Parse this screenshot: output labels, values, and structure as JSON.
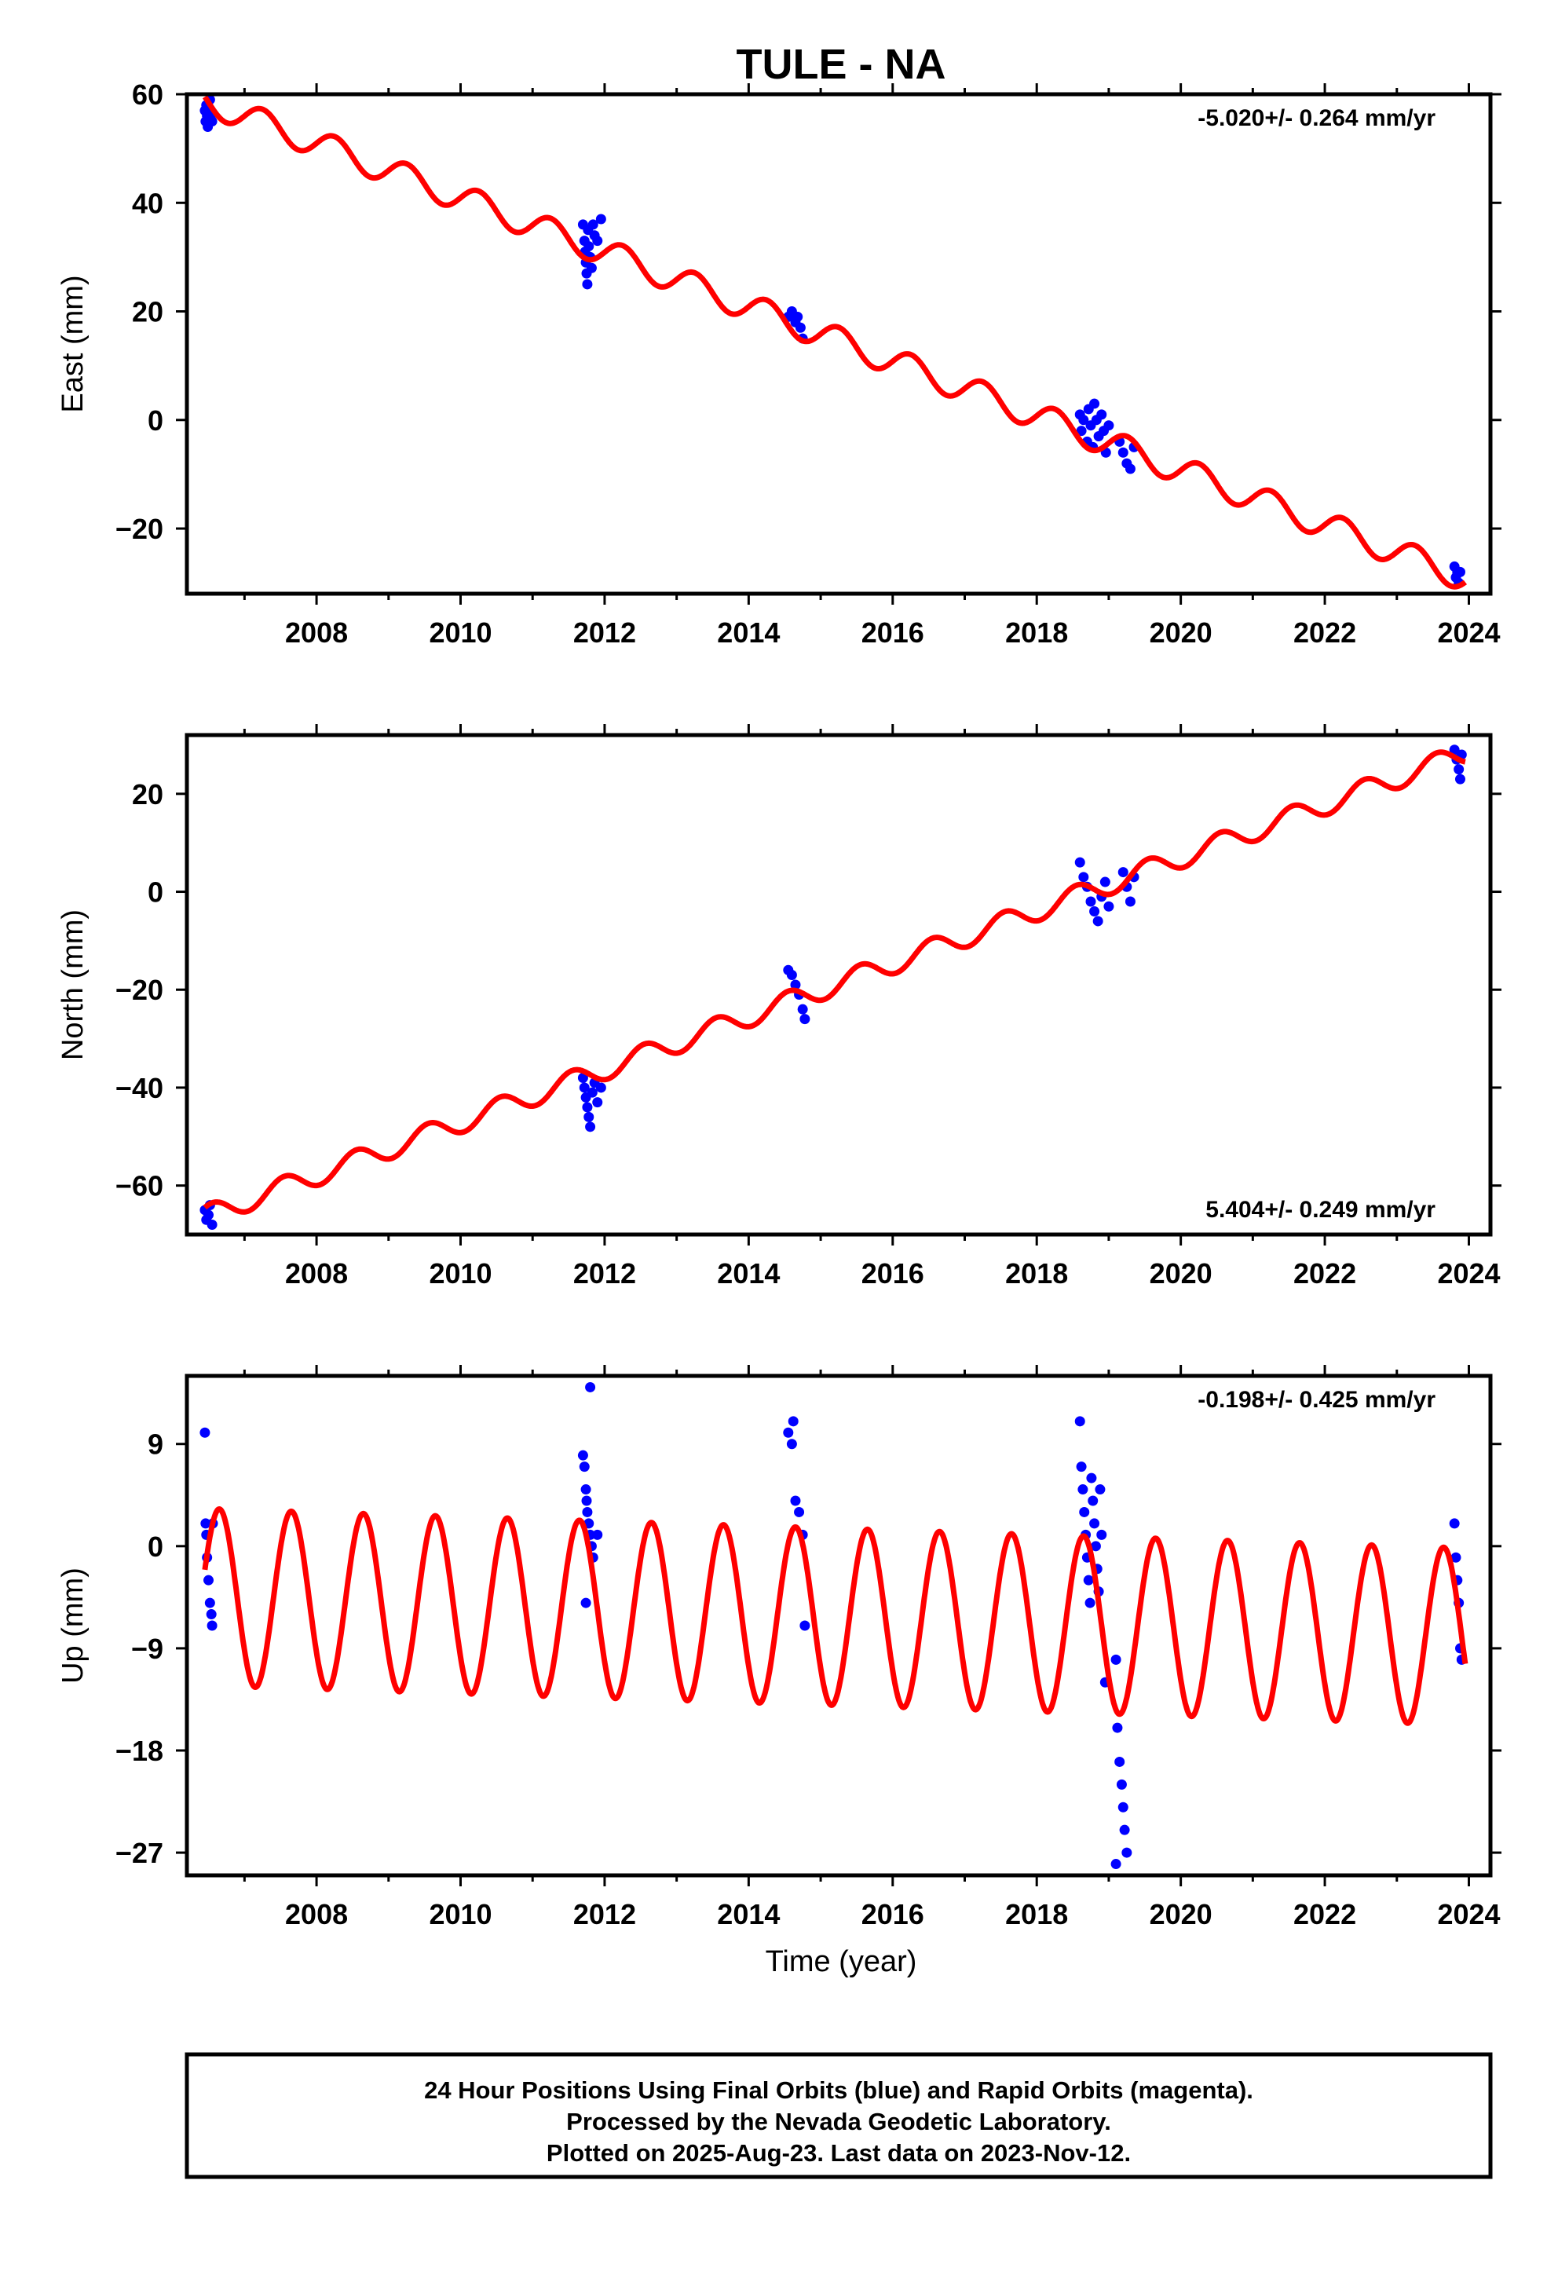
{
  "chart_data": {
    "title": "TULE - NA",
    "xlabel": "Time (year)",
    "xlim": [
      2006.2,
      2024.3
    ],
    "x_ticks": [
      2008,
      2010,
      2012,
      2014,
      2016,
      2018,
      2020,
      2022,
      2024
    ],
    "panels": [
      {
        "type": "scatter",
        "ylabel": "East (mm)",
        "ylim": [
          -32,
          60
        ],
        "y_ticks": [
          60,
          40,
          20,
          0,
          -20
        ],
        "rate_label": "-5.020+/- 0.264 mm/yr",
        "rate_position": "top-right",
        "model": {
          "color": "#ff0000",
          "slope": -5.02,
          "intercept": 58.5,
          "t0": 2006.5,
          "annual_amplitude": 2.5,
          "annual_phase": 0.5
        },
        "series": [
          {
            "color": "#0000ff",
            "points": [
              [
                2006.45,
                57
              ],
              [
                2006.46,
                55
              ],
              [
                2006.47,
                58
              ],
              [
                2006.48,
                56
              ],
              [
                2006.49,
                54
              ],
              [
                2006.5,
                57
              ],
              [
                2006.52,
                59
              ],
              [
                2006.53,
                56
              ],
              [
                2006.55,
                55
              ],
              [
                2011.7,
                36
              ],
              [
                2011.72,
                33
              ],
              [
                2011.73,
                31
              ],
              [
                2011.74,
                29
              ],
              [
                2011.75,
                27
              ],
              [
                2011.76,
                25
              ],
              [
                2011.77,
                35
              ],
              [
                2011.78,
                32
              ],
              [
                2011.8,
                30
              ],
              [
                2011.82,
                28
              ],
              [
                2011.84,
                36
              ],
              [
                2011.86,
                34
              ],
              [
                2011.9,
                33
              ],
              [
                2011.95,
                37
              ],
              [
                2014.55,
                19
              ],
              [
                2014.6,
                20
              ],
              [
                2014.65,
                18
              ],
              [
                2014.68,
                19
              ],
              [
                2014.72,
                17
              ],
              [
                2014.75,
                15
              ],
              [
                2018.6,
                1
              ],
              [
                2018.62,
                -2
              ],
              [
                2018.65,
                0
              ],
              [
                2018.7,
                -4
              ],
              [
                2018.72,
                2
              ],
              [
                2018.75,
                -1
              ],
              [
                2018.78,
                -5
              ],
              [
                2018.8,
                3
              ],
              [
                2018.83,
                0
              ],
              [
                2018.86,
                -3
              ],
              [
                2018.9,
                1
              ],
              [
                2018.93,
                -2
              ],
              [
                2018.96,
                -6
              ],
              [
                2019.0,
                -1
              ],
              [
                2019.15,
                -4
              ],
              [
                2019.2,
                -6
              ],
              [
                2019.25,
                -8
              ],
              [
                2019.3,
                -9
              ],
              [
                2019.35,
                -5
              ],
              [
                2023.8,
                -27
              ],
              [
                2023.82,
                -29
              ],
              [
                2023.84,
                -28
              ],
              [
                2023.86,
                -30
              ],
              [
                2023.88,
                -28
              ]
            ]
          }
        ]
      },
      {
        "type": "scatter",
        "ylabel": "North (mm)",
        "ylim": [
          -70,
          32
        ],
        "y_ticks": [
          20,
          0,
          -20,
          -40,
          -60
        ],
        "rate_label": "5.404+/- 0.249 mm/yr",
        "rate_position": "bottom-right",
        "model": {
          "color": "#ff0000",
          "slope": 5.404,
          "intercept": -66,
          "t0": 2006.5,
          "annual_amplitude": 2.2,
          "annual_phase": 0.2
        },
        "series": [
          {
            "color": "#0000ff",
            "points": [
              [
                2006.45,
                -65
              ],
              [
                2006.47,
                -67
              ],
              [
                2006.5,
                -66
              ],
              [
                2006.52,
                -64
              ],
              [
                2006.55,
                -68
              ],
              [
                2011.7,
                -38
              ],
              [
                2011.72,
                -40
              ],
              [
                2011.74,
                -42
              ],
              [
                2011.76,
                -44
              ],
              [
                2011.78,
                -46
              ],
              [
                2011.8,
                -48
              ],
              [
                2011.83,
                -41
              ],
              [
                2011.86,
                -39
              ],
              [
                2011.9,
                -43
              ],
              [
                2011.95,
                -40
              ],
              [
                2014.55,
                -16
              ],
              [
                2014.6,
                -17
              ],
              [
                2014.65,
                -19
              ],
              [
                2014.7,
                -21
              ],
              [
                2014.75,
                -24
              ],
              [
                2014.78,
                -26
              ],
              [
                2018.6,
                6
              ],
              [
                2018.65,
                3
              ],
              [
                2018.7,
                1
              ],
              [
                2018.75,
                -2
              ],
              [
                2018.8,
                -4
              ],
              [
                2018.85,
                -6
              ],
              [
                2018.9,
                -1
              ],
              [
                2018.95,
                2
              ],
              [
                2019.0,
                -3
              ],
              [
                2019.2,
                4
              ],
              [
                2019.25,
                1
              ],
              [
                2019.3,
                -2
              ],
              [
                2019.35,
                3
              ],
              [
                2023.8,
                29
              ],
              [
                2023.83,
                27
              ],
              [
                2023.86,
                25
              ],
              [
                2023.88,
                23
              ],
              [
                2023.9,
                28
              ]
            ]
          }
        ]
      },
      {
        "type": "scatter",
        "ylabel": "Up (mm)",
        "ylim": [
          -29,
          15
        ],
        "y_ticks": [
          9,
          0,
          -9,
          -18,
          -27
        ],
        "rate_label": "-0.198+/- 0.425 mm/yr",
        "rate_position": "top-right",
        "model": {
          "color": "#ff0000",
          "slope": -0.198,
          "intercept": -4.5,
          "t0": 2006.5,
          "annual_amplitude": 7.8,
          "annual_phase": 0.1
        },
        "series": [
          {
            "color": "#0000ff",
            "points": [
              [
                2006.45,
                10
              ],
              [
                2006.46,
                2
              ],
              [
                2006.47,
                1
              ],
              [
                2006.48,
                -1
              ],
              [
                2006.5,
                -3
              ],
              [
                2006.52,
                -5
              ],
              [
                2006.54,
                -6
              ],
              [
                2006.55,
                -7
              ],
              [
                2006.56,
                2
              ],
              [
                2011.7,
                8
              ],
              [
                2011.72,
                7
              ],
              [
                2011.74,
                5
              ],
              [
                2011.75,
                4
              ],
              [
                2011.76,
                3
              ],
              [
                2011.78,
                2
              ],
              [
                2011.8,
                1
              ],
              [
                2011.82,
                0
              ],
              [
                2011.84,
                -1
              ],
              [
                2011.74,
                -5
              ],
              [
                2011.8,
                14
              ],
              [
                2011.9,
                1
              ],
              [
                2014.55,
                10
              ],
              [
                2014.6,
                9
              ],
              [
                2014.62,
                11
              ],
              [
                2014.65,
                4
              ],
              [
                2014.7,
                3
              ],
              [
                2014.75,
                1
              ],
              [
                2014.78,
                -7
              ],
              [
                2018.6,
                11
              ],
              [
                2018.62,
                7
              ],
              [
                2018.64,
                5
              ],
              [
                2018.66,
                3
              ],
              [
                2018.68,
                1
              ],
              [
                2018.7,
                -1
              ],
              [
                2018.72,
                -3
              ],
              [
                2018.74,
                -5
              ],
              [
                2018.76,
                6
              ],
              [
                2018.78,
                4
              ],
              [
                2018.8,
                2
              ],
              [
                2018.82,
                0
              ],
              [
                2018.84,
                -2
              ],
              [
                2018.86,
                -4
              ],
              [
                2018.88,
                5
              ],
              [
                2018.9,
                1
              ],
              [
                2018.95,
                -12
              ],
              [
                2019.1,
                -10
              ],
              [
                2019.12,
                -16
              ],
              [
                2019.15,
                -19
              ],
              [
                2019.18,
                -21
              ],
              [
                2019.2,
                -23
              ],
              [
                2019.22,
                -25
              ],
              [
                2019.25,
                -27
              ],
              [
                2019.1,
                -28
              ],
              [
                2023.8,
                2
              ],
              [
                2023.82,
                -1
              ],
              [
                2023.84,
                -3
              ],
              [
                2023.86,
                -5
              ],
              [
                2023.88,
                -9
              ],
              [
                2023.9,
                -10
              ]
            ]
          }
        ]
      }
    ]
  },
  "footer": {
    "line1": "24 Hour Positions Using Final Orbits (blue) and Rapid Orbits (magenta).",
    "line2": "Processed by the Nevada Geodetic Laboratory.",
    "line3": "Plotted on 2025-Aug-23. Last data on 2023-Nov-12."
  }
}
